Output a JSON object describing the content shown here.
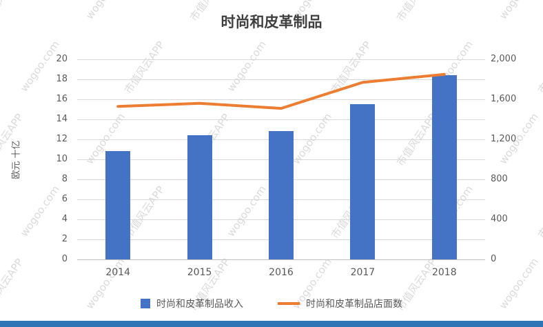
{
  "chart_data": {
    "type": "bar+line",
    "title": "时尚和皮革制品",
    "categories": [
      "2014",
      "2015",
      "2016",
      "2017",
      "2018"
    ],
    "series": [
      {
        "name": "时尚和皮革制品收入",
        "type": "bar",
        "axis": "left",
        "color": "#4472c4",
        "values": [
          10.8,
          12.4,
          12.8,
          15.5,
          18.4
        ]
      },
      {
        "name": "时尚和皮革制品店面数",
        "type": "line",
        "axis": "right",
        "color": "#ed7d31",
        "values": [
          1530,
          1560,
          1510,
          1770,
          1850
        ]
      }
    ],
    "left_axis": {
      "label": "欧元 十亿",
      "min": 0,
      "max": 20,
      "step": 2,
      "ticks": [
        "0",
        "2",
        "4",
        "6",
        "8",
        "10",
        "12",
        "14",
        "16",
        "18",
        "20"
      ]
    },
    "right_axis": {
      "min": 0,
      "max": 2000,
      "step": 400,
      "ticks": [
        "0",
        "400",
        "800",
        "1,200",
        "1,600",
        "2,000"
      ]
    },
    "grid": true,
    "legend_position": "bottom",
    "colors": {
      "bar": "#4472c4",
      "line": "#ed7d31",
      "gridline": "#d9d9d9",
      "accent_bottom_bar": "#2e75b6"
    }
  },
  "watermark": {
    "text_primary": "市值风云APP",
    "text_secondary": "wogoo.com"
  }
}
